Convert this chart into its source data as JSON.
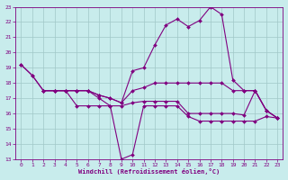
{
  "xlabel": "Windchill (Refroidissement éolien,°C)",
  "bg_color": "#c8ecec",
  "line_color": "#800080",
  "grid_color": "#a0c8c8",
  "xlim": [
    -0.5,
    23.5
  ],
  "ylim": [
    13,
    23
  ],
  "xticks": [
    0,
    1,
    2,
    3,
    4,
    5,
    6,
    7,
    8,
    9,
    10,
    11,
    12,
    13,
    14,
    15,
    16,
    17,
    18,
    19,
    20,
    21,
    22,
    23
  ],
  "yticks": [
    13,
    14,
    15,
    16,
    17,
    18,
    19,
    20,
    21,
    22,
    23
  ],
  "line1_x": [
    0,
    1,
    2,
    3,
    4,
    5,
    6,
    7,
    8,
    9,
    10,
    11,
    12,
    13,
    14,
    15,
    16,
    17,
    18,
    19,
    20,
    21,
    22,
    23
  ],
  "line1_y": [
    19.2,
    18.5,
    17.5,
    17.5,
    17.5,
    17.5,
    17.5,
    17.2,
    17.0,
    16.7,
    18.8,
    19.0,
    20.5,
    21.8,
    22.2,
    21.7,
    22.1,
    23.0,
    22.5,
    18.2,
    17.5,
    17.5,
    16.2,
    15.7
  ],
  "line2_x": [
    0,
    1,
    2,
    3,
    4,
    5,
    6,
    7,
    8,
    9,
    10,
    11,
    12,
    13,
    14,
    15,
    16,
    17,
    18,
    19,
    20,
    21,
    22,
    23
  ],
  "line2_y": [
    19.2,
    18.5,
    17.5,
    17.5,
    17.5,
    17.5,
    17.5,
    17.2,
    17.0,
    16.7,
    17.5,
    17.7,
    18.0,
    18.0,
    18.0,
    18.0,
    18.0,
    18.0,
    18.0,
    17.5,
    17.5,
    17.5,
    16.2,
    15.7
  ],
  "line3_x": [
    2,
    3,
    4,
    5,
    6,
    7,
    8,
    9,
    10,
    11,
    12,
    13,
    14,
    15,
    16,
    17,
    18,
    19,
    20,
    21,
    22,
    23
  ],
  "line3_y": [
    17.5,
    17.5,
    17.5,
    17.5,
    17.5,
    17.0,
    16.5,
    16.5,
    16.7,
    16.8,
    16.8,
    16.8,
    16.8,
    16.0,
    16.0,
    16.0,
    16.0,
    16.0,
    15.9,
    17.5,
    16.2,
    15.7
  ],
  "line4_x": [
    2,
    3,
    4,
    5,
    6,
    7,
    8,
    9,
    10,
    11,
    12,
    13,
    14,
    15,
    16,
    17,
    18,
    19,
    20,
    21,
    22,
    23
  ],
  "line4_y": [
    17.5,
    17.5,
    17.5,
    16.5,
    16.5,
    16.5,
    16.5,
    13.0,
    13.3,
    16.5,
    16.5,
    16.5,
    16.5,
    15.8,
    15.5,
    15.5,
    15.5,
    15.5,
    15.5,
    15.5,
    15.8,
    15.7
  ]
}
